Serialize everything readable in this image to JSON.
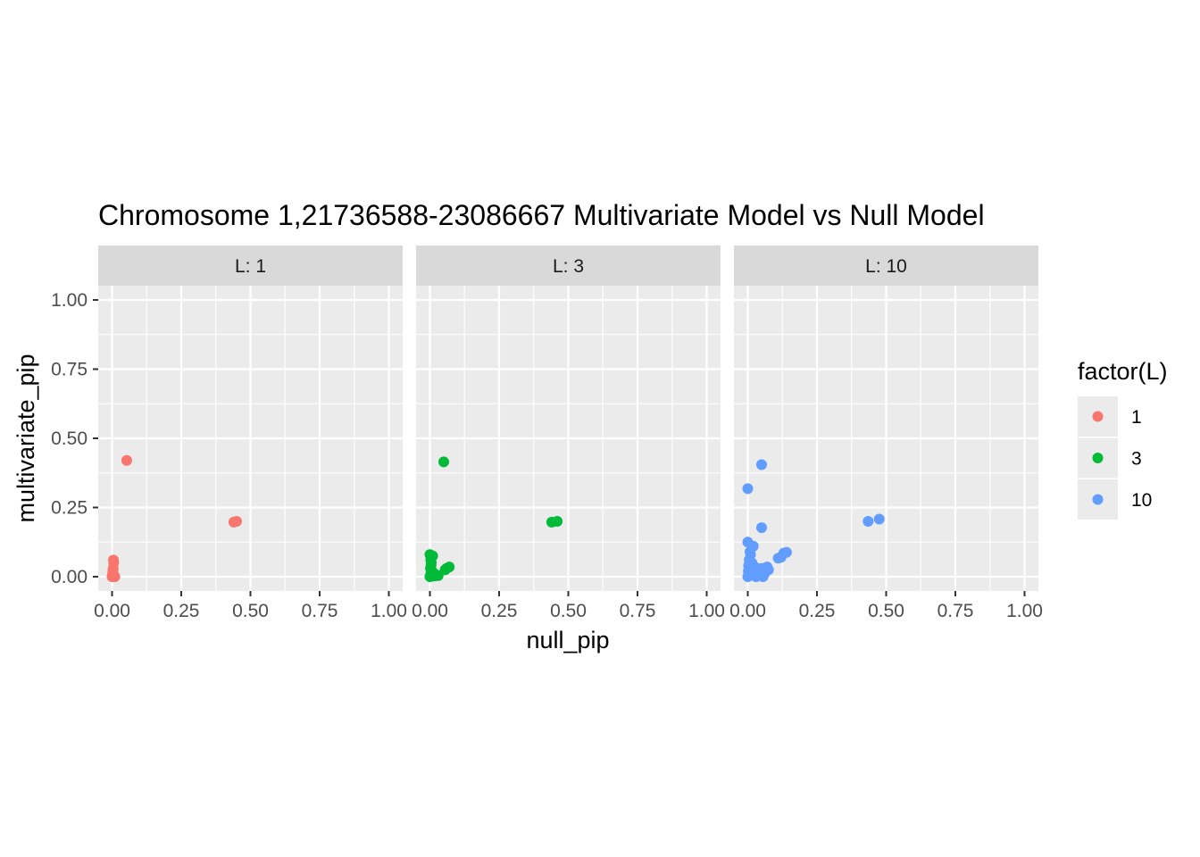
{
  "chart_data": {
    "type": "scatter",
    "title": "Chromosome 1,21736588-23086667 Multivariate Model vs Null Model",
    "xlabel": "null_pip",
    "ylabel": "multivariate_pip",
    "xlim": [
      0,
      1
    ],
    "ylim": [
      0,
      1
    ],
    "x_ticks": [
      "0.00",
      "0.25",
      "0.50",
      "0.75",
      "1.00"
    ],
    "y_ticks": [
      "0.00",
      "0.25",
      "0.50",
      "0.75",
      "1.00"
    ],
    "grid": true,
    "legend": {
      "title": "factor(L)",
      "position": "right"
    },
    "facet_label_prefix": "L: ",
    "series": [
      {
        "name": "1",
        "color": "#F8766D",
        "points": [
          [
            0.053,
            0.42
          ],
          [
            0.44,
            0.197
          ],
          [
            0.45,
            0.2
          ],
          [
            0.005,
            0.06
          ],
          [
            0.006,
            0.05
          ],
          [
            0.004,
            0.03
          ],
          [
            0.003,
            0.02
          ],
          [
            0.002,
            0.01
          ],
          [
            0.001,
            0.005
          ],
          [
            0.0,
            0.0
          ],
          [
            0.005,
            0.002
          ],
          [
            0.008,
            0.003
          ],
          [
            0.01,
            0.0
          ],
          [
            0.003,
            0.0
          ],
          [
            0.006,
            0.001
          ]
        ]
      },
      {
        "name": "3",
        "color": "#00BA38",
        "points": [
          [
            0.05,
            0.415
          ],
          [
            0.44,
            0.197
          ],
          [
            0.46,
            0.2
          ],
          [
            0.0,
            0.08
          ],
          [
            0.01,
            0.075
          ],
          [
            0.003,
            0.06
          ],
          [
            0.005,
            0.05
          ],
          [
            0.004,
            0.04
          ],
          [
            0.002,
            0.03
          ],
          [
            0.006,
            0.02
          ],
          [
            0.003,
            0.01
          ],
          [
            0.0,
            0.0
          ],
          [
            0.01,
            0.002
          ],
          [
            0.02,
            0.003
          ],
          [
            0.03,
            0.004
          ],
          [
            0.06,
            0.03
          ],
          [
            0.07,
            0.035
          ],
          [
            0.055,
            0.025
          ],
          [
            0.015,
            0.012
          ],
          [
            0.008,
            0.018
          ],
          [
            0.004,
            0.005
          ]
        ]
      },
      {
        "name": "10",
        "color": "#619CFF",
        "points": [
          [
            0.05,
            0.405
          ],
          [
            0.0,
            0.318
          ],
          [
            0.05,
            0.177
          ],
          [
            0.435,
            0.2
          ],
          [
            0.475,
            0.208
          ],
          [
            0.0,
            0.125
          ],
          [
            0.02,
            0.11
          ],
          [
            0.01,
            0.08
          ],
          [
            0.005,
            0.06
          ],
          [
            0.003,
            0.04
          ],
          [
            0.002,
            0.02
          ],
          [
            0.0,
            0.0
          ],
          [
            0.01,
            0.005
          ],
          [
            0.02,
            0.01
          ],
          [
            0.03,
            0.0
          ],
          [
            0.04,
            0.02
          ],
          [
            0.05,
            0.03
          ],
          [
            0.06,
            0.01
          ],
          [
            0.07,
            0.035
          ],
          [
            0.075,
            0.025
          ],
          [
            0.11,
            0.067
          ],
          [
            0.12,
            0.07
          ],
          [
            0.13,
            0.085
          ],
          [
            0.14,
            0.088
          ],
          [
            0.055,
            0.0
          ],
          [
            0.015,
            0.05
          ],
          [
            0.008,
            0.09
          ],
          [
            0.025,
            0.035
          ]
        ]
      }
    ]
  }
}
